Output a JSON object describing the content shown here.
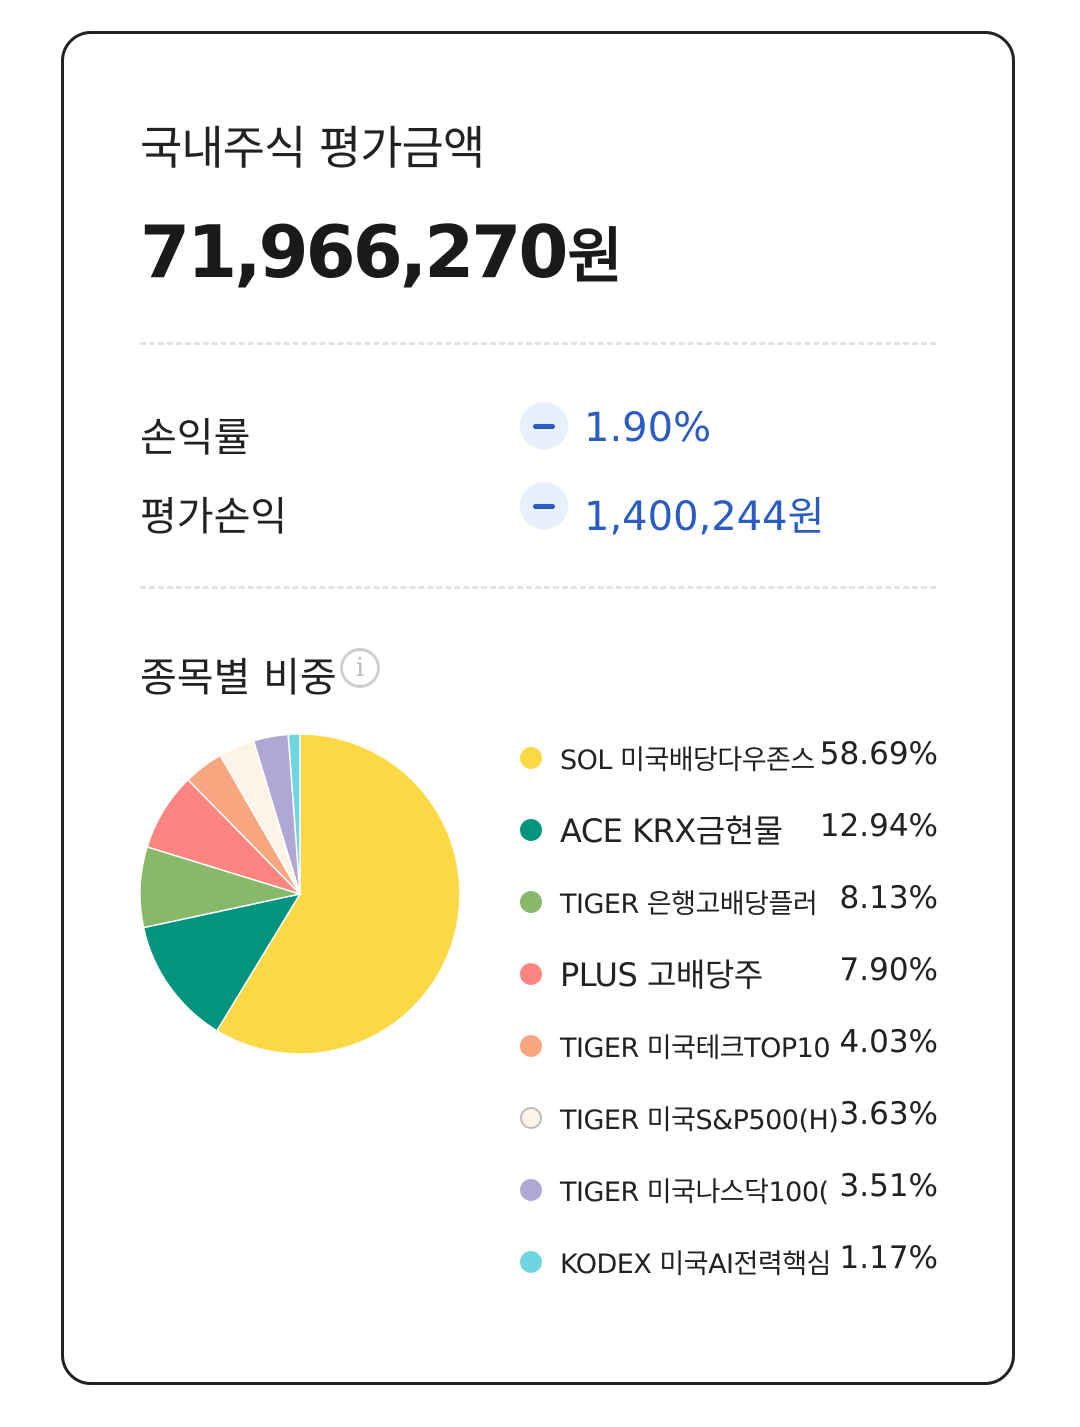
{
  "header": {
    "title": "국내주식 평가금액",
    "amount": "71,966,270",
    "amount_unit": "원"
  },
  "stats": [
    {
      "label": "손익률",
      "sign": "minus",
      "value": "1.90%"
    },
    {
      "label": "평가손익",
      "sign": "minus",
      "value": "1,400,244원"
    }
  ],
  "allocation": {
    "title": "종목별 비중",
    "info_icon": "info-icon"
  },
  "chart_data": {
    "type": "pie",
    "title": "종목별 비중",
    "categories": [
      "SOL 미국배당다우존스",
      "ACE KRX금현물",
      "TIGER 은행고배당플러",
      "PLUS 고배당주",
      "TIGER 미국테크TOP10",
      "TIGER 미국S&P500(H)",
      "TIGER 미국나스닥100(",
      "KODEX 미국AI전력핵심"
    ],
    "values": [
      58.69,
      12.94,
      8.13,
      7.9,
      4.03,
      3.63,
      3.51,
      1.17
    ],
    "labels": [
      "58.69%",
      "12.94%",
      "8.13%",
      "7.90%",
      "4.03%",
      "3.63%",
      "3.51%",
      "1.17%"
    ],
    "colors": [
      "#fcd944",
      "#02947f",
      "#87b969",
      "#fd8480",
      "#f7a680",
      "#fdf3e6",
      "#b1a7d5",
      "#6fd5e1"
    ],
    "legend": "right"
  }
}
